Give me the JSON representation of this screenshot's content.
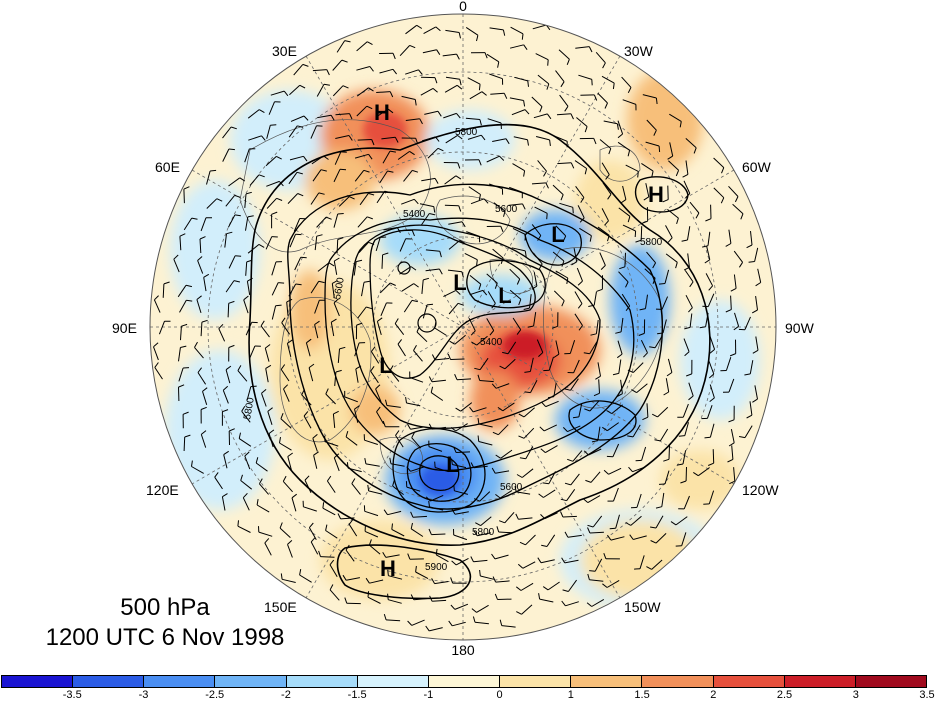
{
  "title": {
    "level": "500 hPa",
    "time": "1200 UTC 6 Nov 1998"
  },
  "longitude_labels": {
    "n0": "0",
    "e30": "30E",
    "w30": "30W",
    "e60": "60E",
    "w60": "60W",
    "e90": "90E",
    "w90": "90W",
    "e120": "120E",
    "w120": "120W",
    "e150": "150E",
    "w150": "150W",
    "s180": "180"
  },
  "pressure_centers": [
    {
      "label": "H",
      "kind": "high"
    },
    {
      "label": "H",
      "kind": "high"
    },
    {
      "label": "L",
      "kind": "low"
    },
    {
      "label": "L",
      "kind": "low"
    },
    {
      "label": "L",
      "kind": "low"
    },
    {
      "label": "L",
      "kind": "low"
    },
    {
      "label": "L",
      "kind": "low"
    },
    {
      "label": "H",
      "kind": "high"
    }
  ],
  "contour_labels": [
    "5800",
    "5600",
    "5400",
    "5900"
  ],
  "colorbar": {
    "colors": [
      "#1a14d2",
      "#2b5ce6",
      "#4a8ef2",
      "#6fb4f6",
      "#a6dcfa",
      "#d6f2fd",
      "#fdf6d6",
      "#fbe3a8",
      "#f7bf7a",
      "#f1905a",
      "#e6503c",
      "#cc1e28",
      "#a00a1e"
    ],
    "ticks": [
      "-3.5",
      "-3",
      "-2.5",
      "-2",
      "-1.5",
      "-1",
      "0",
      "1",
      "1.5",
      "2",
      "2.5",
      "3",
      "3.5"
    ]
  }
}
